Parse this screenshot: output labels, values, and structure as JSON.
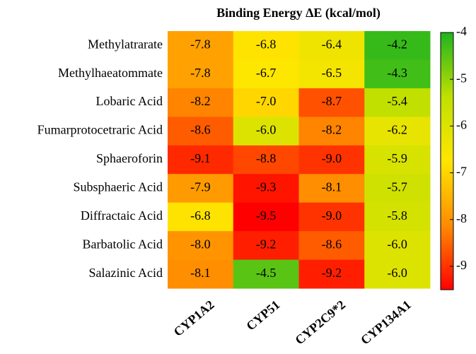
{
  "chart_data": {
    "type": "heatmap",
    "title": "Binding Energy ΔE (kcal/mol)",
    "x": [
      "CYP1A2",
      "CYP51",
      "CYP2C9*2",
      "CYP134A1"
    ],
    "y": [
      "Methylatrarate",
      "Methylhaeatommate",
      "Lobaric Acid",
      "Fumarprotocetraric Acid",
      "Sphaeroforin",
      "Subsphaeric Acid",
      "Diffractaic Acid",
      "Barbatolic Acid",
      "Salazinic Acid"
    ],
    "values": [
      [
        -7.8,
        -6.8,
        -6.4,
        -4.2
      ],
      [
        -7.8,
        -6.7,
        -6.5,
        -4.3
      ],
      [
        -8.2,
        -7.0,
        -8.7,
        -5.4
      ],
      [
        -8.6,
        -6.0,
        -8.2,
        -6.2
      ],
      [
        -9.1,
        -8.8,
        -9.0,
        -5.9
      ],
      [
        -7.9,
        -9.3,
        -8.1,
        -5.7
      ],
      [
        -6.8,
        -9.5,
        -9.0,
        -5.8
      ],
      [
        -8.0,
        -9.2,
        -8.6,
        -6.0
      ],
      [
        -8.1,
        -4.5,
        -9.2,
        -6.0
      ]
    ],
    "value_labels": [
      [
        "-7.8",
        "-6.8",
        "-6.4",
        "-4.2"
      ],
      [
        "-7.8",
        "-6.7",
        "-6.5",
        "-4.3"
      ],
      [
        "-8.2",
        "-7.0",
        "-8.7",
        "-5.4"
      ],
      [
        "-8.6",
        "-6.0",
        "-8.2",
        "-6.2"
      ],
      [
        "-9.1",
        "-8.8",
        "-9.0",
        "-5.9"
      ],
      [
        "-7.9",
        "-9.3",
        "-8.1",
        "-5.7"
      ],
      [
        "-6.8",
        "-9.5",
        "-9.0",
        "-5.8"
      ],
      [
        "-8.0",
        "-9.2",
        "-8.6",
        "-6.0"
      ],
      [
        "-8.1",
        "-4.5",
        "-9.2",
        "-6.0"
      ]
    ],
    "clim": [
      -9.5,
      -4
    ],
    "cticks": [
      -4,
      -5,
      -6,
      -7,
      -8,
      -9
    ],
    "colors": [
      "#ff0000",
      "#ff8c00",
      "#ffe600",
      "#c0e000",
      "#1eb41e"
    ]
  }
}
